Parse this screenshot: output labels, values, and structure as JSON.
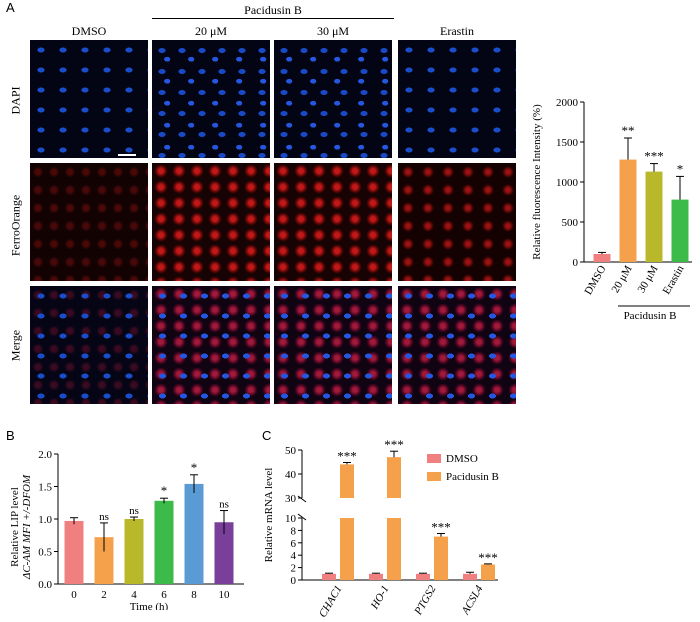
{
  "panel_a": {
    "letter": "A",
    "group_label": "Pacidusin B",
    "columns": [
      "DMSO",
      "20 μM",
      "30 μM",
      "Erastin"
    ],
    "rows": [
      "DAPI",
      "FerroOrange",
      "Merge"
    ]
  },
  "panel_b": {
    "letter": "B"
  },
  "panel_c": {
    "letter": "C"
  },
  "chart_data": [
    {
      "type": "bar",
      "id": "fluorescence",
      "categories": [
        "DMSO",
        "20 μM",
        "30 μM",
        "Erastin"
      ],
      "values": [
        100,
        1280,
        1130,
        780
      ],
      "errors": [
        20,
        270,
        100,
        290
      ],
      "significance": [
        "",
        "**",
        "***",
        "*"
      ],
      "colors": [
        "#f08080",
        "#f5a04a",
        "#b8b82a",
        "#3dbb4a"
      ],
      "ylabel": "Relative fluorescence Intensity (%)",
      "group_label": "Pacidusin B",
      "ylim": [
        0,
        2000
      ],
      "yticks": [
        "0",
        "500",
        "1000",
        "1500",
        "2000"
      ]
    },
    {
      "type": "bar",
      "id": "lip",
      "categories": [
        "0",
        "2",
        "4",
        "6",
        "8",
        "10"
      ],
      "values": [
        0.97,
        0.72,
        1.0,
        1.28,
        1.54,
        0.95
      ],
      "errors": [
        0.05,
        0.22,
        0.03,
        0.04,
        0.14,
        0.18
      ],
      "significance": [
        "",
        "ns",
        "ns",
        "*",
        "*",
        "ns"
      ],
      "colors": [
        "#f08080",
        "#f5a04a",
        "#b8b82a",
        "#3dbb4a",
        "#5b9bd5",
        "#7a3f9a"
      ],
      "ylabel_line1": "Relative LIP level",
      "ylabel_line2": "ΔC-AM MFI +/-DFOM",
      "xlabel": "Time (h)",
      "ylim": [
        0,
        2.0
      ],
      "yticks": [
        "0.0",
        "0.5",
        "1.0",
        "1.5",
        "2.0"
      ]
    },
    {
      "type": "bar",
      "id": "mrna",
      "categories": [
        "CHAC1",
        "HO-1",
        "PTGS2",
        "ACSL4"
      ],
      "series": [
        {
          "name": "DMSO",
          "color": "#f08080",
          "values": [
            1.0,
            1.0,
            1.0,
            1.0
          ],
          "errors": [
            0.1,
            0.1,
            0.1,
            0.25
          ]
        },
        {
          "name": "Pacidusin B",
          "color": "#f5a04a",
          "values": [
            44,
            47,
            7.0,
            2.5
          ],
          "errors": [
            0.8,
            2.5,
            0.5,
            0.1
          ]
        }
      ],
      "significance": [
        "***",
        "***",
        "***",
        "***"
      ],
      "ylabel": "Relative mRNA level",
      "lower_ticks": [
        "0",
        "2",
        "4",
        "6",
        "8",
        "10"
      ],
      "upper_ticks": [
        "30",
        "40",
        "50"
      ],
      "axis_break": [
        10,
        30
      ]
    }
  ]
}
